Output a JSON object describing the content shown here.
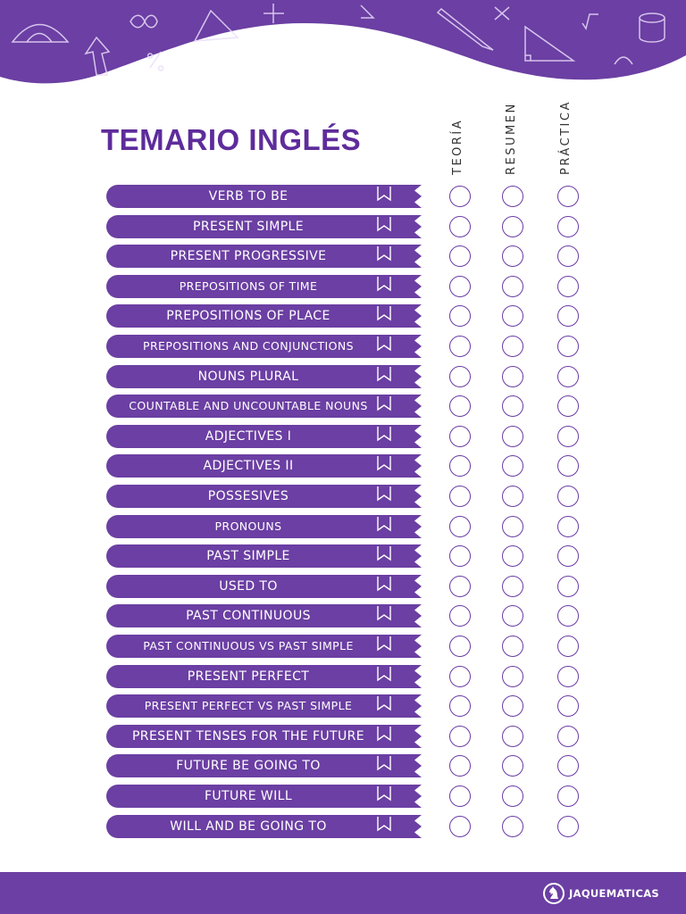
{
  "title": "TEMARIO INGLÉS",
  "columns": [
    "TEORÍA",
    "RESUMEN",
    "PRÁCTICA"
  ],
  "topics": [
    {
      "label": "VERB TO BE",
      "small": false
    },
    {
      "label": "PRESENT SIMPLE",
      "small": false
    },
    {
      "label": "PRESENT PROGRESSIVE",
      "small": false
    },
    {
      "label": "PREPOSITIONS OF TIME",
      "small": true
    },
    {
      "label": "PREPOSITIONS OF PLACE",
      "small": false
    },
    {
      "label": "PREPOSITIONS AND CONJUNCTIONS",
      "small": true
    },
    {
      "label": "NOUNS PLURAL",
      "small": false
    },
    {
      "label": "COUNTABLE AND UNCOUNTABLE NOUNS",
      "small": true
    },
    {
      "label": "ADJECTIVES I",
      "small": false
    },
    {
      "label": "ADJECTIVES II",
      "small": false
    },
    {
      "label": "POSSESIVES",
      "small": false
    },
    {
      "label": "PRONOUNS",
      "small": true
    },
    {
      "label": "PAST SIMPLE",
      "small": false
    },
    {
      "label": "USED TO",
      "small": false
    },
    {
      "label": "PAST CONTINUOUS",
      "small": false
    },
    {
      "label": "PAST CONTINUOUS VS PAST SIMPLE",
      "small": true
    },
    {
      "label": "PRESENT PERFECT",
      "small": false
    },
    {
      "label": "PRESENT PERFECT VS PAST SIMPLE",
      "small": true
    },
    {
      "label": "PRESENT TENSES FOR THE FUTURE",
      "small": false
    },
    {
      "label": "FUTURE BE GOING TO",
      "small": false
    },
    {
      "label": "FUTURE WILL",
      "small": false
    },
    {
      "label": "WILL AND BE GOING TO",
      "small": false
    }
  ],
  "brand": "JAQUEMATICAS",
  "colors": {
    "primary": "#6b3fa3",
    "title": "#5e2c9b",
    "white": "#ffffff"
  }
}
